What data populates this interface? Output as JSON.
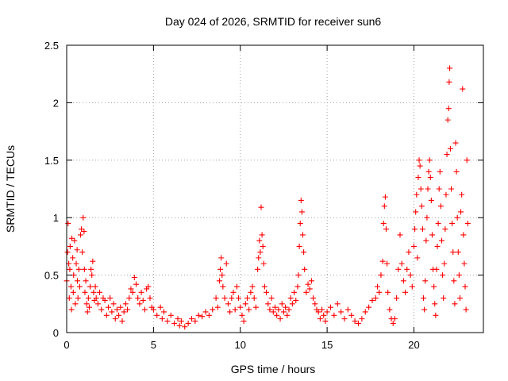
{
  "chart_data": {
    "type": "scatter",
    "title": "Day 024 of 2026, SRMTID for receiver sun6",
    "xlabel": "GPS time / hours",
    "ylabel": "SRMTID / TECUs",
    "xlim": [
      0,
      24
    ],
    "ylim": [
      0,
      2.5
    ],
    "xticks": [
      0,
      5,
      10,
      15,
      20
    ],
    "xtick_labels": [
      "0",
      "5",
      "10",
      "15",
      "20"
    ],
    "yticks": [
      0,
      0.5,
      1,
      1.5,
      2,
      2.5
    ],
    "ytick_labels": [
      "0",
      "0.5",
      "1",
      "1.5",
      "2",
      "2.5"
    ],
    "grid": true,
    "marker": "+",
    "series": [
      {
        "name": "SRMTID",
        "color": "#ff0000",
        "points": [
          [
            0.0,
            0.45
          ],
          [
            0.05,
            0.7
          ],
          [
            0.08,
            0.95
          ],
          [
            0.12,
            0.6
          ],
          [
            0.15,
            0.3
          ],
          [
            0.18,
            0.55
          ],
          [
            0.2,
            0.75
          ],
          [
            0.25,
            0.4
          ],
          [
            0.28,
            0.2
          ],
          [
            0.3,
            0.82
          ],
          [
            0.35,
            0.65
          ],
          [
            0.38,
            0.35
          ],
          [
            0.4,
            0.5
          ],
          [
            0.45,
            0.8
          ],
          [
            0.5,
            0.25
          ],
          [
            0.55,
            0.6
          ],
          [
            0.6,
            0.72
          ],
          [
            0.62,
            0.45
          ],
          [
            0.65,
            0.3
          ],
          [
            0.7,
            0.55
          ],
          [
            0.75,
            0.4
          ],
          [
            0.8,
            0.85
          ],
          [
            0.85,
            0.9
          ],
          [
            0.9,
            0.7
          ],
          [
            0.95,
            1.0
          ],
          [
            1.0,
            0.88
          ],
          [
            1.02,
            0.55
          ],
          [
            1.05,
            0.35
          ],
          [
            1.1,
            0.45
          ],
          [
            1.15,
            0.25
          ],
          [
            1.2,
            0.18
          ],
          [
            1.25,
            0.3
          ],
          [
            1.3,
            0.22
          ],
          [
            1.35,
            0.4
          ],
          [
            1.4,
            0.55
          ],
          [
            1.45,
            0.5
          ],
          [
            1.5,
            0.62
          ],
          [
            1.55,
            0.35
          ],
          [
            1.6,
            0.28
          ],
          [
            1.65,
            0.4
          ],
          [
            1.7,
            0.3
          ],
          [
            1.8,
            0.25
          ],
          [
            1.9,
            0.35
          ],
          [
            2.0,
            0.2
          ],
          [
            2.1,
            0.3
          ],
          [
            2.2,
            0.28
          ],
          [
            2.3,
            0.15
          ],
          [
            2.4,
            0.22
          ],
          [
            2.5,
            0.3
          ],
          [
            2.6,
            0.18
          ],
          [
            2.7,
            0.25
          ],
          [
            2.8,
            0.12
          ],
          [
            2.9,
            0.2
          ],
          [
            3.0,
            0.15
          ],
          [
            3.1,
            0.22
          ],
          [
            3.2,
            0.1
          ],
          [
            3.3,
            0.18
          ],
          [
            3.4,
            0.25
          ],
          [
            3.5,
            0.2
          ],
          [
            3.6,
            0.3
          ],
          [
            3.7,
            0.38
          ],
          [
            3.8,
            0.35
          ],
          [
            3.9,
            0.48
          ],
          [
            4.0,
            0.42
          ],
          [
            4.1,
            0.3
          ],
          [
            4.2,
            0.25
          ],
          [
            4.3,
            0.35
          ],
          [
            4.4,
            0.28
          ],
          [
            4.5,
            0.2
          ],
          [
            4.6,
            0.38
          ],
          [
            4.7,
            0.4
          ],
          [
            4.8,
            0.3
          ],
          [
            4.9,
            0.22
          ],
          [
            5.0,
            0.2
          ],
          [
            5.2,
            0.15
          ],
          [
            5.4,
            0.22
          ],
          [
            5.5,
            0.12
          ],
          [
            5.6,
            0.18
          ],
          [
            5.8,
            0.1
          ],
          [
            6.0,
            0.15
          ],
          [
            6.2,
            0.08
          ],
          [
            6.4,
            0.12
          ],
          [
            6.5,
            0.06
          ],
          [
            6.6,
            0.1
          ],
          [
            6.8,
            0.05
          ],
          [
            7.0,
            0.08
          ],
          [
            7.2,
            0.12
          ],
          [
            7.4,
            0.1
          ],
          [
            7.6,
            0.15
          ],
          [
            7.8,
            0.14
          ],
          [
            8.0,
            0.18
          ],
          [
            8.2,
            0.15
          ],
          [
            8.4,
            0.2
          ],
          [
            8.6,
            0.3
          ],
          [
            8.7,
            0.22
          ],
          [
            8.8,
            0.45
          ],
          [
            8.85,
            0.55
          ],
          [
            8.9,
            0.65
          ],
          [
            8.95,
            0.5
          ],
          [
            9.0,
            0.4
          ],
          [
            9.1,
            0.3
          ],
          [
            9.2,
            0.6
          ],
          [
            9.3,
            0.25
          ],
          [
            9.4,
            0.18
          ],
          [
            9.5,
            0.3
          ],
          [
            9.6,
            0.35
          ],
          [
            9.7,
            0.2
          ],
          [
            9.8,
            0.4
          ],
          [
            9.9,
            0.3
          ],
          [
            10.0,
            0.22
          ],
          [
            10.1,
            0.15
          ],
          [
            10.2,
            0.1
          ],
          [
            10.3,
            0.25
          ],
          [
            10.4,
            0.3
          ],
          [
            10.5,
            0.2
          ],
          [
            10.6,
            0.35
          ],
          [
            10.7,
            0.4
          ],
          [
            10.8,
            0.3
          ],
          [
            10.9,
            0.22
          ],
          [
            11.0,
            0.55
          ],
          [
            11.05,
            0.65
          ],
          [
            11.1,
            0.8
          ],
          [
            11.15,
            0.7
          ],
          [
            11.2,
            1.09
          ],
          [
            11.25,
            0.85
          ],
          [
            11.3,
            0.75
          ],
          [
            11.35,
            0.6
          ],
          [
            11.4,
            0.4
          ],
          [
            11.5,
            0.35
          ],
          [
            11.6,
            0.25
          ],
          [
            11.7,
            0.2
          ],
          [
            11.8,
            0.3
          ],
          [
            11.9,
            0.18
          ],
          [
            12.0,
            0.22
          ],
          [
            12.1,
            0.15
          ],
          [
            12.2,
            0.2
          ],
          [
            12.3,
            0.12
          ],
          [
            12.4,
            0.25
          ],
          [
            12.5,
            0.18
          ],
          [
            12.6,
            0.22
          ],
          [
            12.7,
            0.15
          ],
          [
            12.8,
            0.2
          ],
          [
            12.9,
            0.3
          ],
          [
            13.0,
            0.25
          ],
          [
            13.1,
            0.35
          ],
          [
            13.2,
            0.28
          ],
          [
            13.3,
            0.4
          ],
          [
            13.35,
            0.5
          ],
          [
            13.4,
            0.75
          ],
          [
            13.45,
            0.95
          ],
          [
            13.5,
            1.15
          ],
          [
            13.55,
            1.05
          ],
          [
            13.6,
            0.85
          ],
          [
            13.65,
            0.7
          ],
          [
            13.7,
            0.55
          ],
          [
            13.8,
            0.35
          ],
          [
            13.9,
            0.42
          ],
          [
            14.0,
            0.38
          ],
          [
            14.1,
            0.45
          ],
          [
            14.2,
            0.3
          ],
          [
            14.3,
            0.25
          ],
          [
            14.4,
            0.2
          ],
          [
            14.5,
            0.18
          ],
          [
            14.6,
            0.12
          ],
          [
            14.7,
            0.2
          ],
          [
            14.8,
            0.15
          ],
          [
            14.9,
            0.1
          ],
          [
            15.0,
            0.18
          ],
          [
            15.2,
            0.22
          ],
          [
            15.4,
            0.15
          ],
          [
            15.6,
            0.25
          ],
          [
            15.8,
            0.18
          ],
          [
            16.0,
            0.12
          ],
          [
            16.2,
            0.2
          ],
          [
            16.4,
            0.15
          ],
          [
            16.6,
            0.1
          ],
          [
            16.8,
            0.08
          ],
          [
            17.0,
            0.12
          ],
          [
            17.2,
            0.18
          ],
          [
            17.4,
            0.22
          ],
          [
            17.6,
            0.28
          ],
          [
            17.8,
            0.3
          ],
          [
            17.9,
            0.4
          ],
          [
            18.0,
            0.35
          ],
          [
            18.1,
            0.5
          ],
          [
            18.2,
            0.62
          ],
          [
            18.25,
            0.95
          ],
          [
            18.3,
            1.1
          ],
          [
            18.35,
            1.18
          ],
          [
            18.4,
            0.9
          ],
          [
            18.45,
            0.6
          ],
          [
            18.5,
            0.35
          ],
          [
            18.6,
            0.2
          ],
          [
            18.7,
            0.12
          ],
          [
            18.8,
            0.08
          ],
          [
            18.9,
            0.12
          ],
          [
            19.0,
            0.3
          ],
          [
            19.1,
            0.55
          ],
          [
            19.2,
            0.85
          ],
          [
            19.3,
            0.6
          ],
          [
            19.4,
            0.45
          ],
          [
            19.5,
            0.35
          ],
          [
            19.6,
            0.55
          ],
          [
            19.7,
            0.7
          ],
          [
            19.8,
            0.5
          ],
          [
            19.9,
            0.4
          ],
          [
            20.0,
            0.75
          ],
          [
            20.05,
            0.9
          ],
          [
            20.1,
            1.05
          ],
          [
            20.15,
            1.2
          ],
          [
            20.2,
            0.65
          ],
          [
            20.25,
            1.35
          ],
          [
            20.3,
            1.5
          ],
          [
            20.35,
            1.45
          ],
          [
            20.4,
            1.25
          ],
          [
            20.45,
            1.1
          ],
          [
            20.5,
            0.9
          ],
          [
            20.55,
            0.3
          ],
          [
            20.6,
            0.2
          ],
          [
            20.65,
            0.45
          ],
          [
            20.7,
            0.8
          ],
          [
            20.75,
            1.0
          ],
          [
            20.8,
            1.25
          ],
          [
            20.85,
            1.4
          ],
          [
            20.9,
            1.5
          ],
          [
            20.95,
            1.35
          ],
          [
            21.0,
            1.15
          ],
          [
            21.05,
            0.85
          ],
          [
            21.1,
            0.55
          ],
          [
            21.15,
            0.4
          ],
          [
            21.2,
            0.25
          ],
          [
            21.25,
            0.15
          ],
          [
            21.3,
            0.55
          ],
          [
            21.35,
            0.75
          ],
          [
            21.4,
            0.95
          ],
          [
            21.45,
            1.25
          ],
          [
            21.5,
            1.4
          ],
          [
            21.55,
            1.1
          ],
          [
            21.6,
            0.8
          ],
          [
            21.65,
            0.5
          ],
          [
            21.7,
            0.3
          ],
          [
            21.75,
            0.6
          ],
          [
            21.8,
            0.9
          ],
          [
            21.85,
            1.2
          ],
          [
            21.9,
            1.55
          ],
          [
            21.95,
            1.85
          ],
          [
            22.0,
            1.95
          ],
          [
            22.03,
            2.18
          ],
          [
            22.06,
            2.3
          ],
          [
            22.1,
            1.6
          ],
          [
            22.15,
            1.25
          ],
          [
            22.2,
            0.95
          ],
          [
            22.25,
            0.7
          ],
          [
            22.3,
            0.45
          ],
          [
            22.35,
            0.25
          ],
          [
            22.4,
            1.65
          ],
          [
            22.45,
            1.4
          ],
          [
            22.5,
            1.0
          ],
          [
            22.55,
            0.7
          ],
          [
            22.6,
            0.5
          ],
          [
            22.65,
            0.3
          ],
          [
            22.7,
            1.05
          ],
          [
            22.75,
            1.2
          ],
          [
            22.8,
            2.12
          ],
          [
            22.85,
            0.85
          ],
          [
            22.9,
            0.6
          ],
          [
            22.95,
            0.4
          ],
          [
            23.0,
            0.2
          ],
          [
            23.05,
            1.5
          ],
          [
            23.1,
            0.95
          ]
        ]
      }
    ]
  }
}
